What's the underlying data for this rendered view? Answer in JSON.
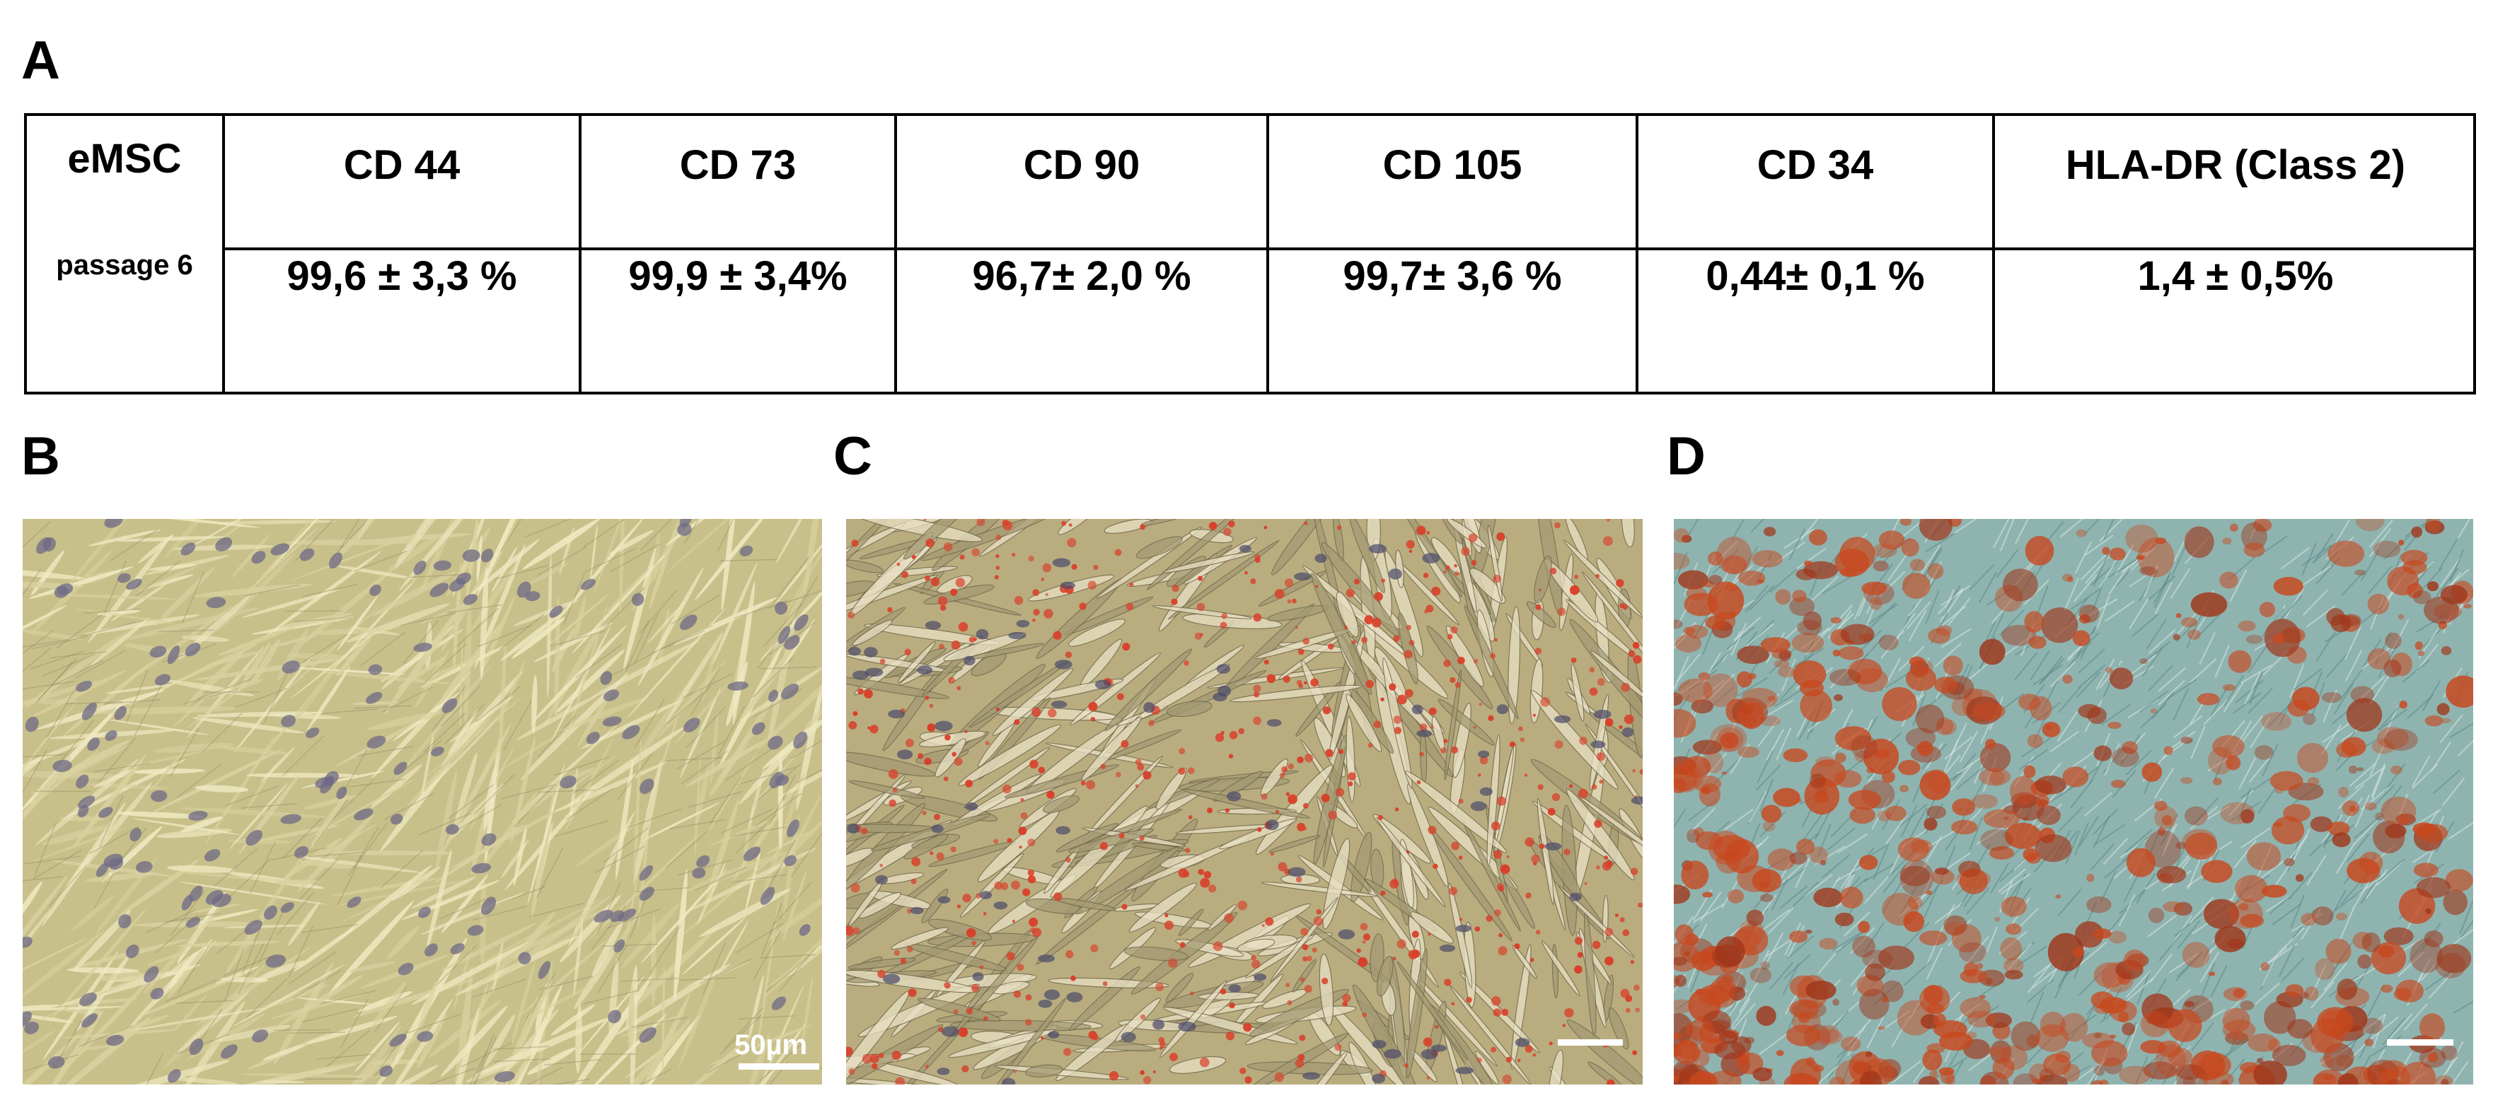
{
  "panels": {
    "a": "A",
    "b": "B",
    "c": "C",
    "d": "D"
  },
  "table": {
    "row_header": "eMSC",
    "row_label": "passage 6",
    "columns": [
      "CD 44",
      "CD 73",
      "CD 90",
      "CD 105",
      "CD 34",
      "HLA-DR (Class 2)"
    ],
    "values": [
      "99,6 ± 3,3 %",
      "99,9 ± 3,4%",
      "96,7± 2,0 %",
      "99,7± 3,6 %",
      "0,44± 0,1 %",
      "1,4 ± 0,5%"
    ]
  },
  "micrographs": {
    "b": {
      "scale_label": "50µm",
      "palette": {
        "background": "#c8c08a",
        "cells": "#efe9c2",
        "nuclei": "#6e6a86"
      }
    },
    "c": {
      "palette": {
        "background": "#b9ad80",
        "cells": "#e8e0c4",
        "stain": "#d8402a",
        "nuclei": "#4a4a6a"
      }
    },
    "d": {
      "palette": {
        "background": "#8fb4b0",
        "stain": "#c8481e"
      }
    }
  }
}
